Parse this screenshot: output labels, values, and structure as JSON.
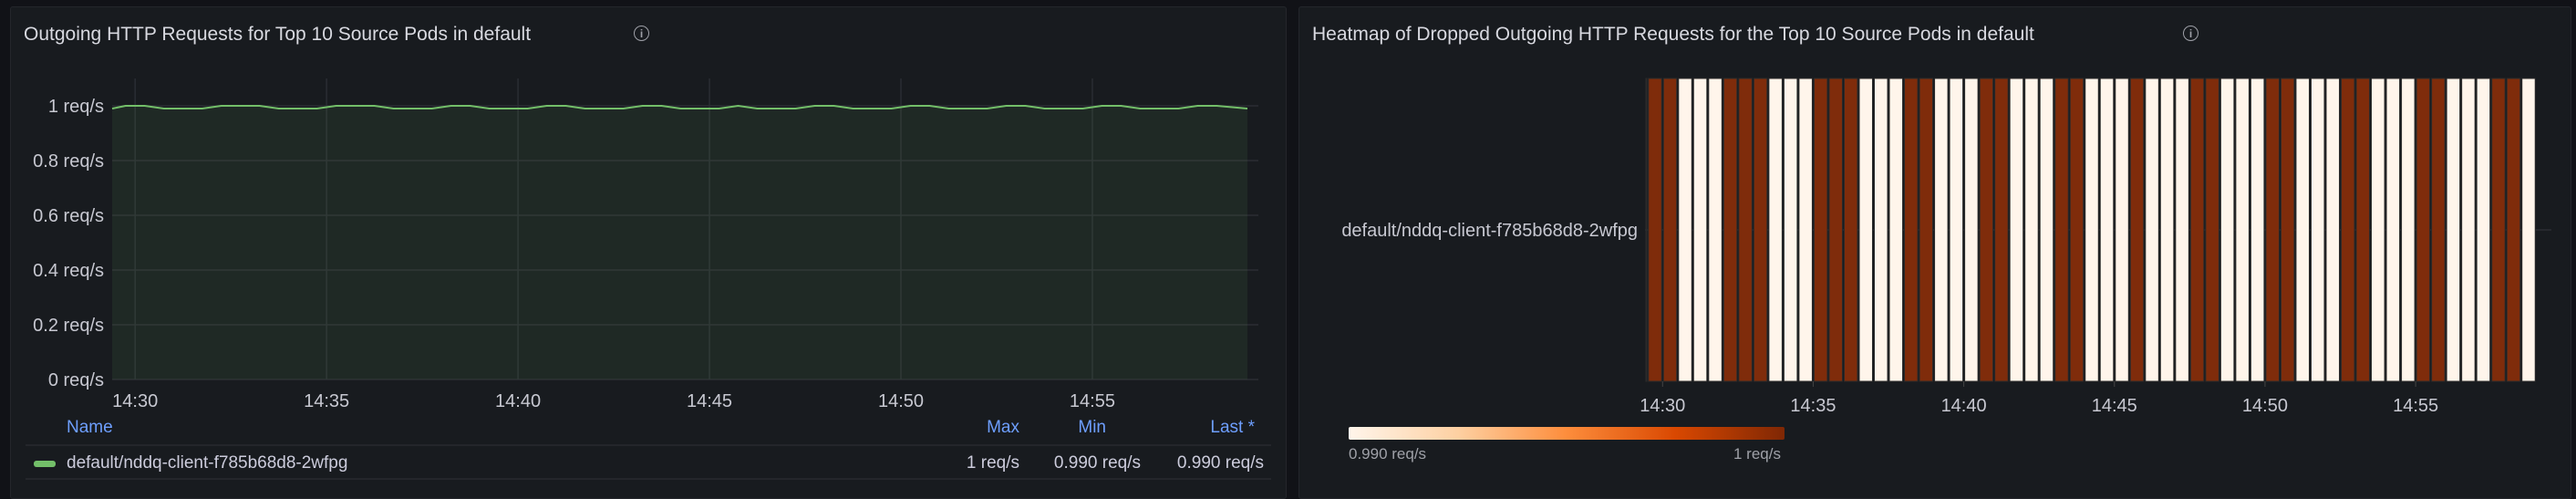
{
  "colors": {
    "page_bg": "#111217",
    "panel_bg": "#181b1f",
    "series": "#73bf69",
    "legend_header": "#6e9fff",
    "heat_low": "#fff5eb",
    "heat_high": "#7f2c0b"
  },
  "left_panel": {
    "title": "Outgoing HTTP Requests for Top 10 Source Pods in default",
    "info_icon": "info-circle-icon",
    "legend": {
      "headers": {
        "name": "Name",
        "max": "Max",
        "min": "Min",
        "last": "Last *"
      },
      "rows": [
        {
          "name": "default/nddq-client-f785b68d8-2wfpg",
          "max": "1 req/s",
          "min": "0.990 req/s",
          "last": "0.990 req/s"
        }
      ]
    }
  },
  "right_panel": {
    "title": "Heatmap of Dropped Outgoing HTTP Requests for the Top 10 Source Pods in default",
    "info_icon": "info-circle-icon",
    "scale": {
      "min_label": "0.990 req/s",
      "max_label": "1 req/s"
    }
  },
  "chart_data": [
    {
      "type": "area",
      "title": "Outgoing HTTP Requests for Top 10 Source Pods in default",
      "xlim": [
        "14:29:24",
        "14:59:03"
      ],
      "ylim": [
        0,
        1.1
      ],
      "x_ticks": [
        "14:30",
        "14:35",
        "14:40",
        "14:45",
        "14:50",
        "14:55"
      ],
      "y_ticks": [
        {
          "v": 0,
          "label": "0 req/s"
        },
        {
          "v": 0.2,
          "label": "0.2 req/s"
        },
        {
          "v": 0.4,
          "label": "0.4 req/s"
        },
        {
          "v": 0.6,
          "label": "0.6 req/s"
        },
        {
          "v": 0.8,
          "label": "0.8 req/s"
        },
        {
          "v": 1,
          "label": "1 req/s"
        }
      ],
      "grid": true,
      "legend": "bottom",
      "series": [
        {
          "name": "default/nddq-client-f785b68d8-2wfpg",
          "color": "#73bf69",
          "start": "14:29:00",
          "step_seconds": 30,
          "values": [
            0.99,
            1,
            1,
            0.99,
            0.99,
            0.99,
            1,
            1,
            1,
            0.99,
            0.99,
            0.99,
            1,
            1,
            1,
            0.99,
            0.99,
            0.99,
            1,
            1,
            0.99,
            0.99,
            0.99,
            1,
            1,
            0.99,
            0.99,
            0.99,
            1,
            1,
            0.99,
            0.99,
            0.99,
            1,
            0.99,
            0.99,
            0.99,
            1,
            1,
            0.99,
            0.99,
            0.99,
            1,
            1,
            0.99,
            0.99,
            0.99,
            1,
            1,
            0.99,
            0.99,
            0.99,
            1,
            1,
            0.99,
            0.99,
            0.99,
            1,
            1,
            0.99
          ]
        }
      ]
    },
    {
      "type": "heatmap",
      "title": "Heatmap of Dropped Outgoing HTTP Requests for the Top 10 Source Pods in default",
      "xlim": [
        "14:29:25",
        "14:59:05"
      ],
      "x_ticks": [
        "14:30",
        "14:35",
        "14:40",
        "14:45",
        "14:50",
        "14:55"
      ],
      "y_categories": [
        "default/nddq-client-f785b68d8-2wfpg"
      ],
      "start": "14:29:00",
      "step_seconds": 30,
      "values": [
        0.99,
        1,
        1,
        0.99,
        0.99,
        0.99,
        1,
        1,
        1,
        0.99,
        0.99,
        0.99,
        1,
        1,
        1,
        0.99,
        0.99,
        0.99,
        1,
        1,
        0.99,
        0.99,
        0.99,
        1,
        1,
        0.99,
        0.99,
        0.99,
        1,
        1,
        0.99,
        0.99,
        0.99,
        1,
        0.99,
        0.99,
        0.99,
        1,
        1,
        0.99,
        0.99,
        0.99,
        1,
        1,
        0.99,
        0.99,
        0.99,
        1,
        1,
        0.99,
        0.99,
        0.99,
        1,
        1,
        0.99,
        0.99,
        0.99,
        1,
        1,
        0.99
      ],
      "color_scale": {
        "min": 0.99,
        "max": 1,
        "min_label": "0.990 req/s",
        "max_label": "1 req/s"
      }
    }
  ]
}
